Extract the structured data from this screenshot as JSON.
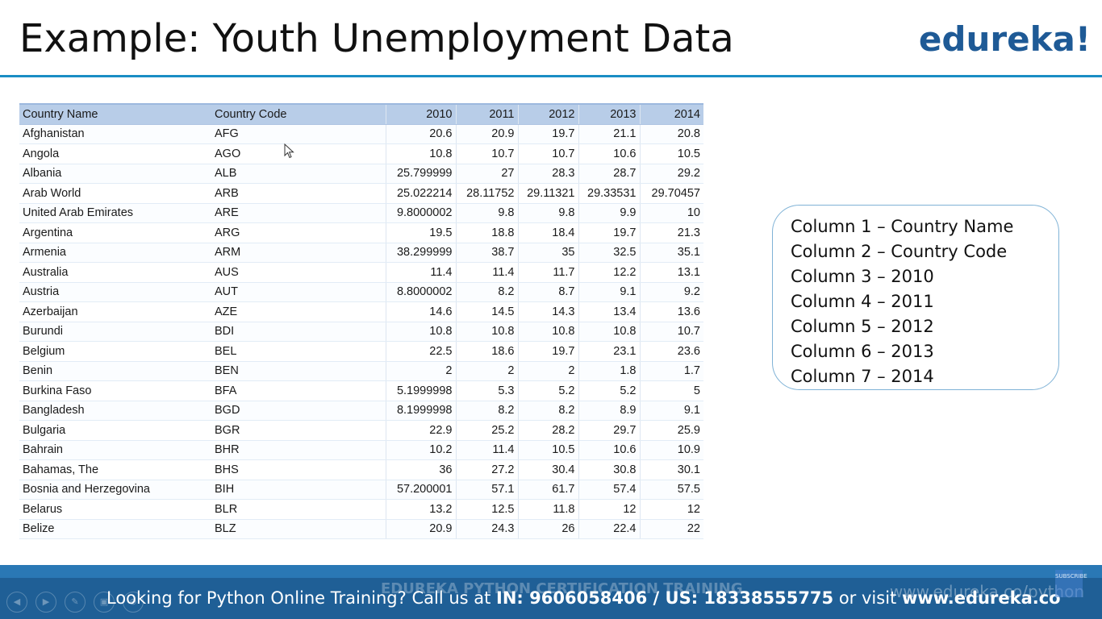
{
  "slide": {
    "title": "Example: Youth Unemployment Data",
    "brand": "edureka!"
  },
  "table": {
    "headers": [
      "Country Name",
      "Country Code",
      "2010",
      "2011",
      "2012",
      "2013",
      "2014"
    ],
    "rows": [
      [
        "Afghanistan",
        "AFG",
        "20.6",
        "20.9",
        "19.7",
        "21.1",
        "20.8"
      ],
      [
        "Angola",
        "AGO",
        "10.8",
        "10.7",
        "10.7",
        "10.6",
        "10.5"
      ],
      [
        "Albania",
        "ALB",
        "25.799999",
        "27",
        "28.3",
        "28.7",
        "29.2"
      ],
      [
        "Arab World",
        "ARB",
        "25.022214",
        "28.11752",
        "29.11321",
        "29.33531",
        "29.70457"
      ],
      [
        "United Arab Emirates",
        "ARE",
        "9.8000002",
        "9.8",
        "9.8",
        "9.9",
        "10"
      ],
      [
        "Argentina",
        "ARG",
        "19.5",
        "18.8",
        "18.4",
        "19.7",
        "21.3"
      ],
      [
        "Armenia",
        "ARM",
        "38.299999",
        "38.7",
        "35",
        "32.5",
        "35.1"
      ],
      [
        "Australia",
        "AUS",
        "11.4",
        "11.4",
        "11.7",
        "12.2",
        "13.1"
      ],
      [
        "Austria",
        "AUT",
        "8.8000002",
        "8.2",
        "8.7",
        "9.1",
        "9.2"
      ],
      [
        "Azerbaijan",
        "AZE",
        "14.6",
        "14.5",
        "14.3",
        "13.4",
        "13.6"
      ],
      [
        "Burundi",
        "BDI",
        "10.8",
        "10.8",
        "10.8",
        "10.8",
        "10.7"
      ],
      [
        "Belgium",
        "BEL",
        "22.5",
        "18.6",
        "19.7",
        "23.1",
        "23.6"
      ],
      [
        "Benin",
        "BEN",
        "2",
        "2",
        "2",
        "1.8",
        "1.7"
      ],
      [
        "Burkina Faso",
        "BFA",
        "5.1999998",
        "5.3",
        "5.2",
        "5.2",
        "5"
      ],
      [
        "Bangladesh",
        "BGD",
        "8.1999998",
        "8.2",
        "8.2",
        "8.9",
        "9.1"
      ],
      [
        "Bulgaria",
        "BGR",
        "22.9",
        "25.2",
        "28.2",
        "29.7",
        "25.9"
      ],
      [
        "Bahrain",
        "BHR",
        "10.2",
        "11.4",
        "10.5",
        "10.6",
        "10.9"
      ],
      [
        "Bahamas, The",
        "BHS",
        "36",
        "27.2",
        "30.4",
        "30.8",
        "30.1"
      ],
      [
        "Bosnia and Herzegovina",
        "BIH",
        "57.200001",
        "57.1",
        "61.7",
        "57.4",
        "57.5"
      ],
      [
        "Belarus",
        "BLR",
        "13.2",
        "12.5",
        "11.8",
        "12",
        "12"
      ],
      [
        "Belize",
        "BLZ",
        "20.9",
        "24.3",
        "26",
        "22.4",
        "22"
      ]
    ]
  },
  "columns_box": {
    "lines": [
      "Column 1 – Country Name",
      "Column 2 – Country Code",
      "Column 3 – 2010",
      "Column 4 – 2011",
      "Column 5 – 2012",
      "Column 6 – 2013",
      "Column 7 – 2014"
    ]
  },
  "footer": {
    "text_prefix": "Looking for Python Online Training? Call us at ",
    "phones": "IN: 9606058406 / US: 18338555775",
    "text_mid": " or visit ",
    "website": "www.edureka.co",
    "watermark": "EDUREKA PYTHON CERTIFICATION TRAINING",
    "site_watermark": "www.edureka.co/python",
    "subscribe": "SUBSCRIBE"
  },
  "colors": {
    "brand_blue": "#1e5a96",
    "rule_blue": "#1a8dc4",
    "footer_blue": "#1f5f96",
    "header_row": "#b8cde8"
  }
}
